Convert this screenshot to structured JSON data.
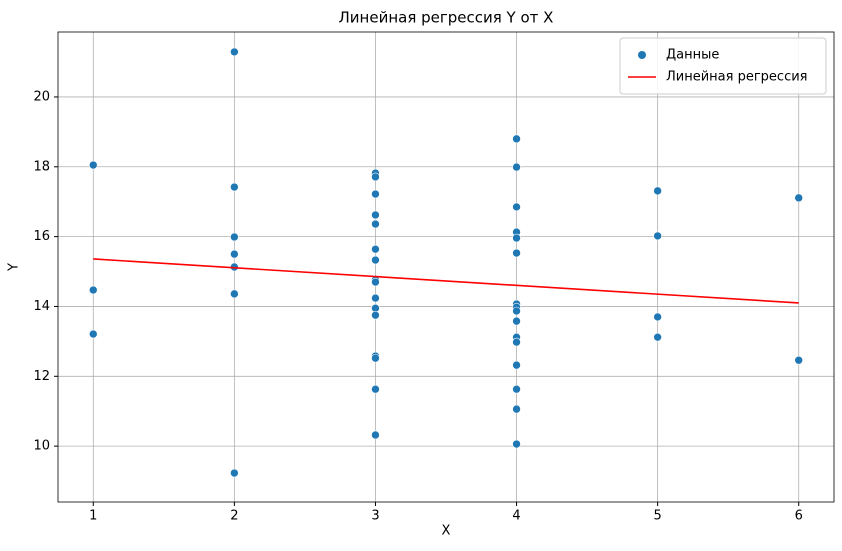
{
  "chart_data": {
    "type": "scatter",
    "title": "Линейная регрессия Y от X",
    "xlabel": "X",
    "ylabel": "Y",
    "xlim": [
      0.75,
      6.25
    ],
    "ylim": [
      8.4,
      21.86
    ],
    "xticks": [
      1,
      2,
      3,
      4,
      5,
      6
    ],
    "yticks": [
      10,
      12,
      14,
      16,
      18,
      20
    ],
    "grid": true,
    "legend": "upper right",
    "series": [
      {
        "name": "Данные",
        "type": "scatter",
        "color": "#1f77b4",
        "x": [
          1,
          1,
          1,
          2,
          2,
          2,
          2,
          2,
          2,
          2,
          3,
          3,
          3,
          3,
          3,
          3,
          3,
          3,
          3,
          3,
          3,
          3,
          3,
          3,
          3,
          3,
          4,
          4,
          4,
          4,
          4,
          4,
          4,
          4,
          4,
          4,
          4,
          4,
          4,
          4,
          4,
          4,
          5,
          5,
          5,
          5,
          6,
          6
        ],
        "values": [
          18.05,
          14.47,
          13.21,
          21.29,
          17.42,
          15.99,
          15.5,
          15.13,
          14.36,
          9.23,
          17.82,
          17.71,
          17.22,
          16.62,
          16.36,
          15.64,
          15.33,
          14.76,
          14.7,
          14.24,
          13.95,
          13.75,
          12.58,
          12.52,
          11.63,
          10.32,
          18.8,
          17.99,
          16.85,
          16.13,
          15.96,
          15.53,
          14.07,
          13.98,
          13.87,
          13.58,
          13.12,
          12.98,
          12.32,
          11.63,
          11.06,
          10.06,
          17.31,
          16.02,
          13.7,
          13.12,
          17.11,
          12.46
        ]
      },
      {
        "name": "Линейная регрессия",
        "type": "line",
        "color": "#ff0000",
        "x": [
          1,
          6
        ],
        "values": [
          15.36,
          14.1
        ]
      }
    ]
  }
}
